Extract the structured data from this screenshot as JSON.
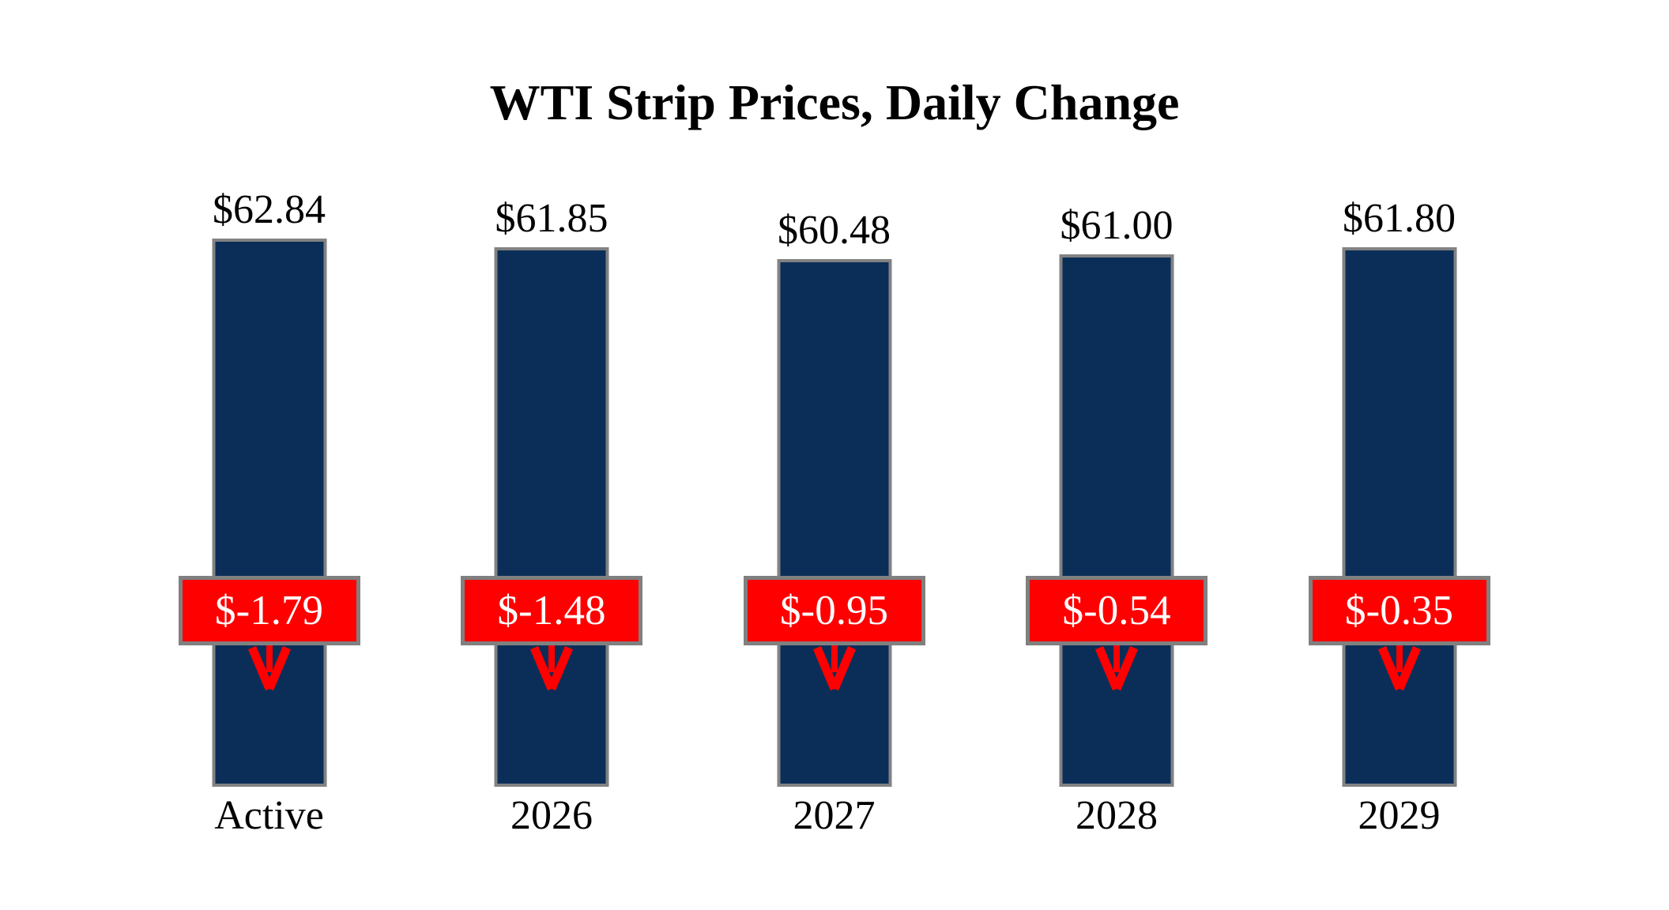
{
  "title": "WTI Strip Prices, Daily Change",
  "colors": {
    "bar": "#0B2E58",
    "bar_border": "#828282",
    "badge": "#FF0000",
    "badge_border": "#808080",
    "badge_text": "#FFFFFF",
    "arrow": "#FF0000",
    "text": "#000000",
    "background": "#FFFFFF"
  },
  "icons": {
    "down_arrow": "red downward arrow below each change badge"
  },
  "chart_data": {
    "type": "bar",
    "title": "WTI Strip Prices, Daily Change",
    "categories": [
      "Active",
      "2026",
      "2027",
      "2028",
      "2029"
    ],
    "series": [
      {
        "name": "Strip Price",
        "values": [
          62.84,
          61.85,
          60.48,
          61.0,
          61.8
        ],
        "labels": [
          "$62.84",
          "$61.85",
          "$60.48",
          "$61.00",
          "$61.80"
        ],
        "label_position": "above bar",
        "color": "#0B2E58"
      },
      {
        "name": "Daily Change",
        "values": [
          -1.79,
          -1.48,
          -0.95,
          -0.54,
          -0.35
        ],
        "labels": [
          "$-1.79",
          "$-1.48",
          "$-0.95",
          "$-0.54",
          "$-0.35"
        ],
        "label_position": "red badge overlapping bar with down arrow",
        "color": "#FF0000"
      }
    ],
    "xlabel": "",
    "ylabel": "",
    "ylim": [
      0,
      62.84
    ],
    "grid": false,
    "legend": false,
    "axes_visible": false,
    "background": "white"
  }
}
